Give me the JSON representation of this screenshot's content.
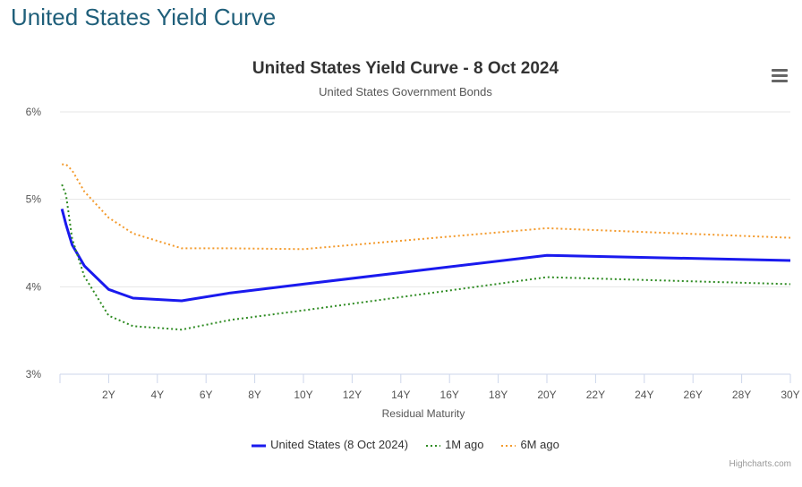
{
  "page": {
    "heading": "United States Yield Curve"
  },
  "menu": {
    "icon": "hamburger-menu-icon"
  },
  "credits": "Highcharts.com",
  "chart_data": {
    "type": "line",
    "title": "United States Yield Curve - 8 Oct 2024",
    "subtitle": "United States Government Bonds",
    "xlabel": "Residual Maturity",
    "ylabel": "",
    "xlim": [
      0,
      30
    ],
    "ylim": [
      3,
      6
    ],
    "x_ticks": [
      2,
      4,
      6,
      8,
      10,
      12,
      14,
      16,
      18,
      20,
      22,
      24,
      26,
      28,
      30
    ],
    "x_tick_labels": [
      "2Y",
      "4Y",
      "6Y",
      "8Y",
      "10Y",
      "12Y",
      "14Y",
      "16Y",
      "18Y",
      "20Y",
      "22Y",
      "24Y",
      "26Y",
      "28Y",
      "30Y"
    ],
    "y_ticks": [
      3,
      4,
      5,
      6
    ],
    "y_tick_labels": [
      "3%",
      "4%",
      "5%",
      "6%"
    ],
    "grid": true,
    "legend_position": "bottom",
    "series": [
      {
        "name": "United States (8 Oct 2024)",
        "color": "#1a1aee",
        "dash": "solid",
        "points": [
          [
            0.08,
            4.89
          ],
          [
            0.25,
            4.71
          ],
          [
            0.5,
            4.48
          ],
          [
            1,
            4.24
          ],
          [
            2,
            3.97
          ],
          [
            3,
            3.87
          ],
          [
            5,
            3.84
          ],
          [
            7,
            3.93
          ],
          [
            10,
            4.03
          ],
          [
            20,
            4.36
          ],
          [
            30,
            4.3
          ]
        ]
      },
      {
        "name": "1M ago",
        "color": "#2e8b22",
        "dash": "dotted",
        "points": [
          [
            0.08,
            5.17
          ],
          [
            0.25,
            5.05
          ],
          [
            0.5,
            4.55
          ],
          [
            1,
            4.12
          ],
          [
            2,
            3.67
          ],
          [
            3,
            3.55
          ],
          [
            5,
            3.51
          ],
          [
            7,
            3.62
          ],
          [
            10,
            3.73
          ],
          [
            20,
            4.11
          ],
          [
            30,
            4.03
          ]
        ]
      },
      {
        "name": "6M ago",
        "color": "#f39a2c",
        "dash": "dotted",
        "points": [
          [
            0.08,
            5.4
          ],
          [
            0.25,
            5.4
          ],
          [
            0.5,
            5.33
          ],
          [
            1,
            5.09
          ],
          [
            2,
            4.79
          ],
          [
            3,
            4.61
          ],
          [
            5,
            4.44
          ],
          [
            7,
            4.44
          ],
          [
            10,
            4.43
          ],
          [
            20,
            4.67
          ],
          [
            30,
            4.56
          ]
        ]
      }
    ]
  }
}
